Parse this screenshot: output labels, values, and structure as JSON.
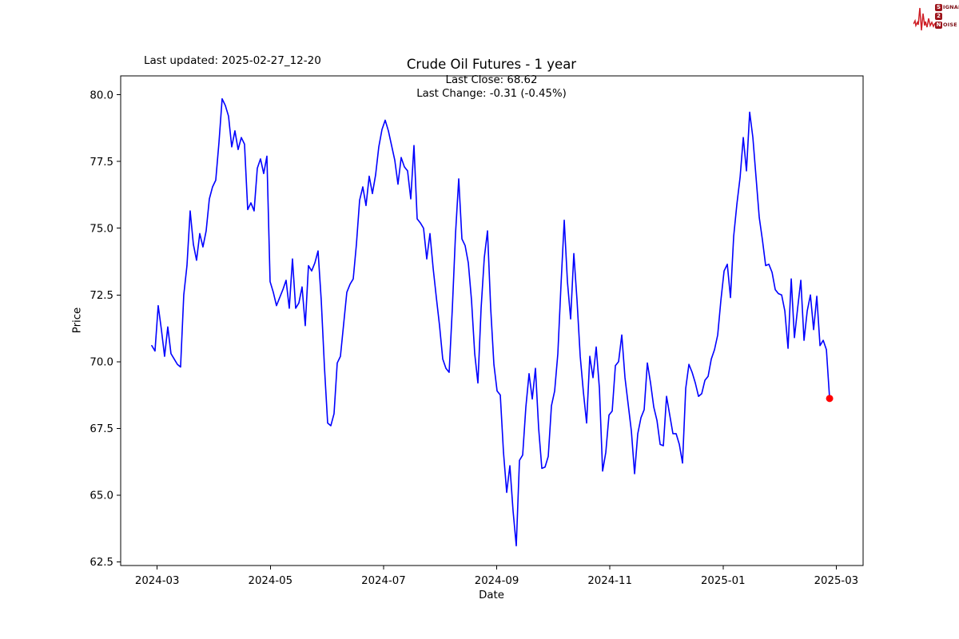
{
  "header": {
    "last_updated": "Last updated: 2025-02-27_12-20",
    "title": "Crude Oil Futures - 1 year",
    "annotation_line1": "Last Close: 68.62",
    "annotation_line2": "Last Change: -0.31 (-0.45%)"
  },
  "logo": {
    "line1_badge": "S",
    "line1_rest": "IGNAL",
    "line2_badge": "2",
    "line2_rest": "",
    "line3_badge": "N",
    "line3_rest": "OISE"
  },
  "chart_data": {
    "type": "line",
    "title": "Crude Oil Futures - 1 year",
    "xlabel": "Date",
    "ylabel": "Price",
    "legend": null,
    "grid": false,
    "line_color": "#0000ff",
    "last_point_color": "#ff0000",
    "axis_color": "#000000",
    "last_close": 68.62,
    "last_change_text": "-0.31 (-0.45%)",
    "x_axis": {
      "tick_labels": [
        "2024-03",
        "2024-05",
        "2024-07",
        "2024-09",
        "2024-11",
        "2025-01",
        "2025-03"
      ],
      "tick_months": [
        0,
        2,
        4,
        6,
        8,
        10,
        12
      ],
      "xlim_months": [
        -0.645,
        12.475
      ],
      "months_origin": "2024-03"
    },
    "y_axis": {
      "tick_labels": [
        "62.5",
        "65.0",
        "67.5",
        "70.0",
        "72.5",
        "75.0",
        "77.5",
        "80.0"
      ],
      "ticks": [
        62.5,
        65.0,
        67.5,
        70.0,
        72.5,
        75.0,
        77.5,
        80.0
      ],
      "ylim": [
        62.36,
        80.71
      ]
    },
    "series": {
      "name": "Close price",
      "x_start_months": -0.095,
      "x_end_months": 11.883,
      "sampling": "evenly spaced in time from x_start_months to x_end_months (months since 2024-03)",
      "prices": [
        70.6,
        70.4,
        72.1,
        71.2,
        70.2,
        71.3,
        70.3,
        70.1,
        69.9,
        69.8,
        72.5,
        73.6,
        75.65,
        74.4,
        73.8,
        74.8,
        74.3,
        74.9,
        76.1,
        76.55,
        76.8,
        78.2,
        79.85,
        79.6,
        79.2,
        78.05,
        78.65,
        77.95,
        78.4,
        78.15,
        75.7,
        75.95,
        75.65,
        77.25,
        77.6,
        77.05,
        77.7,
        73.0,
        72.6,
        72.1,
        72.4,
        72.7,
        73.05,
        72.0,
        73.85,
        72.0,
        72.2,
        72.8,
        71.35,
        73.6,
        73.4,
        73.7,
        74.15,
        72.3,
        69.8,
        67.7,
        67.6,
        68.05,
        69.95,
        70.2,
        71.4,
        72.6,
        72.9,
        73.1,
        74.4,
        76.05,
        76.55,
        75.85,
        76.95,
        76.3,
        77.0,
        78.05,
        78.7,
        79.05,
        78.65,
        78.1,
        77.55,
        76.65,
        77.65,
        77.3,
        77.15,
        76.1,
        78.1,
        75.35,
        75.2,
        75.0,
        73.85,
        74.8,
        73.5,
        72.4,
        71.35,
        70.1,
        69.75,
        69.6,
        72.0,
        74.8,
        76.85,
        74.6,
        74.35,
        73.7,
        72.3,
        70.3,
        69.2,
        72.0,
        73.9,
        74.9,
        72.0,
        69.9,
        68.9,
        68.75,
        66.6,
        65.1,
        66.1,
        64.4,
        63.1,
        66.3,
        66.5,
        68.3,
        69.55,
        68.6,
        69.75,
        67.5,
        66.0,
        66.05,
        66.45,
        68.35,
        68.9,
        70.3,
        72.9,
        75.3,
        73.0,
        71.6,
        74.05,
        72.3,
        70.2,
        68.85,
        67.7,
        70.2,
        69.4,
        70.55,
        69.0,
        65.9,
        66.6,
        68.0,
        68.15,
        69.85,
        70.0,
        71.0,
        69.4,
        68.4,
        67.4,
        65.8,
        67.3,
        67.9,
        68.2,
        69.95,
        69.2,
        68.3,
        67.8,
        66.9,
        66.85,
        68.7,
        68.0,
        67.3,
        67.3,
        66.9,
        66.2,
        69.0,
        69.9,
        69.6,
        69.2,
        68.7,
        68.8,
        69.3,
        69.45,
        70.1,
        70.45,
        71.0,
        72.3,
        73.4,
        73.65,
        72.4,
        74.7,
        75.9,
        76.9,
        78.4,
        77.15,
        79.35,
        78.4,
        76.9,
        75.4,
        74.55,
        73.6,
        73.65,
        73.35,
        72.7,
        72.55,
        72.5,
        71.9,
        70.5,
        73.1,
        70.9,
        72.0,
        73.05,
        70.8,
        71.9,
        72.5,
        71.2,
        72.45,
        70.6,
        70.8,
        70.45,
        68.62
      ]
    }
  }
}
